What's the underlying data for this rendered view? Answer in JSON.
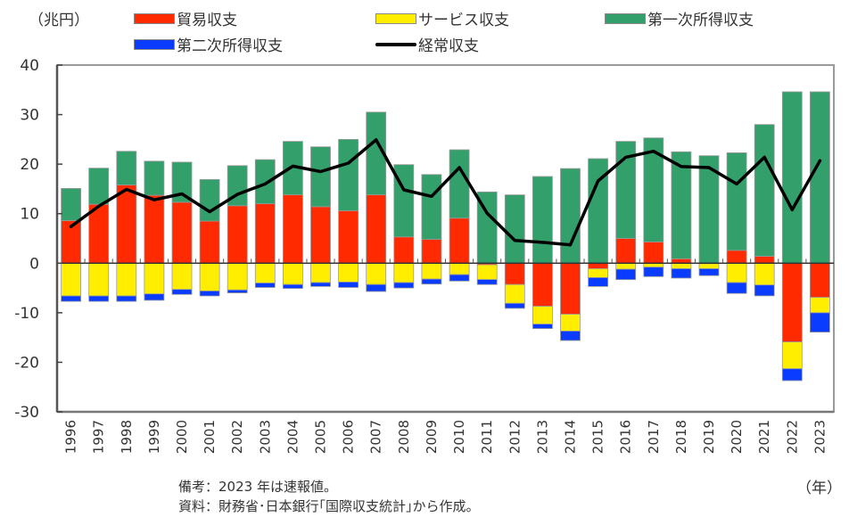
{
  "chart_data": {
    "type": "bar",
    "stacked": true,
    "unit_label": "（兆円）",
    "x_unit_label": "（年）",
    "categories": [
      "1996",
      "1997",
      "1998",
      "1999",
      "2000",
      "2001",
      "2002",
      "2003",
      "2004",
      "2005",
      "2006",
      "2007",
      "2008",
      "2009",
      "2010",
      "2011",
      "2012",
      "2013",
      "2014",
      "2015",
      "2016",
      "2017",
      "2018",
      "2019",
      "2020",
      "2021",
      "2022",
      "2023"
    ],
    "ylim": [
      -30,
      40
    ],
    "yticks": [
      "40",
      "30",
      "20",
      "10",
      "0",
      "-10",
      "-20",
      "-30"
    ],
    "ytick_values": [
      40,
      30,
      20,
      10,
      0,
      -10,
      -20,
      -30
    ],
    "grid": false,
    "legend_position": "top",
    "series": [
      {
        "name": "貿易収支",
        "kind": "bar",
        "color": "#ff2a00",
        "values": [
          8.6,
          11.9,
          15.8,
          13.7,
          12.3,
          8.5,
          11.6,
          12.0,
          13.8,
          11.4,
          10.6,
          13.8,
          5.3,
          4.8,
          9.1,
          -0.3,
          -4.3,
          -8.7,
          -10.3,
          -1.1,
          5.0,
          4.3,
          0.9,
          -0.1,
          2.6,
          1.4,
          -15.9,
          -6.9
        ]
      },
      {
        "name": "サービス収支",
        "kind": "bar",
        "color": "#ffee00",
        "values": [
          -6.6,
          -6.6,
          -6.6,
          -6.2,
          -5.3,
          -5.6,
          -5.4,
          -4.0,
          -4.3,
          -3.9,
          -3.8,
          -4.3,
          -3.9,
          -3.2,
          -2.3,
          -3.0,
          -3.8,
          -3.6,
          -3.4,
          -1.8,
          -1.2,
          -0.8,
          -1.1,
          -1.0,
          -3.9,
          -4.4,
          -5.4,
          -3.1
        ]
      },
      {
        "name": "第一次所得収支",
        "kind": "bar",
        "color": "#33a06b",
        "values": [
          6.5,
          7.3,
          6.8,
          6.9,
          8.1,
          8.4,
          8.1,
          8.9,
          10.8,
          12.1,
          14.4,
          16.7,
          14.6,
          13.1,
          13.8,
          14.4,
          13.8,
          17.5,
          19.1,
          21.1,
          19.6,
          21.0,
          21.6,
          21.7,
          19.7,
          26.6,
          34.6,
          34.6
        ]
      },
      {
        "name": "第二次所得収支",
        "kind": "bar",
        "color": "#0a3cff",
        "values": [
          -1.1,
          -1.1,
          -1.1,
          -1.3,
          -1.0,
          -1.0,
          -0.6,
          -0.9,
          -0.8,
          -0.8,
          -1.1,
          -1.4,
          -1.1,
          -1.0,
          -1.3,
          -1.0,
          -1.0,
          -0.9,
          -1.9,
          -1.8,
          -2.1,
          -1.9,
          -1.9,
          -1.4,
          -2.2,
          -2.2,
          -2.4,
          -3.9
        ]
      },
      {
        "name": "経常収支",
        "kind": "line",
        "color": "#000000",
        "values": [
          7.4,
          11.5,
          14.9,
          12.8,
          14.0,
          10.4,
          13.9,
          16.0,
          19.6,
          18.5,
          20.2,
          24.9,
          14.8,
          13.5,
          19.3,
          10.1,
          4.6,
          4.2,
          3.7,
          16.6,
          21.4,
          22.6,
          19.5,
          19.3,
          16.0,
          21.4,
          10.8,
          20.7
        ]
      }
    ],
    "notes": [
      "備考：2023 年は速報値。",
      "資料：財務省･日本銀行｢国際収支統計｣から作成。"
    ]
  }
}
